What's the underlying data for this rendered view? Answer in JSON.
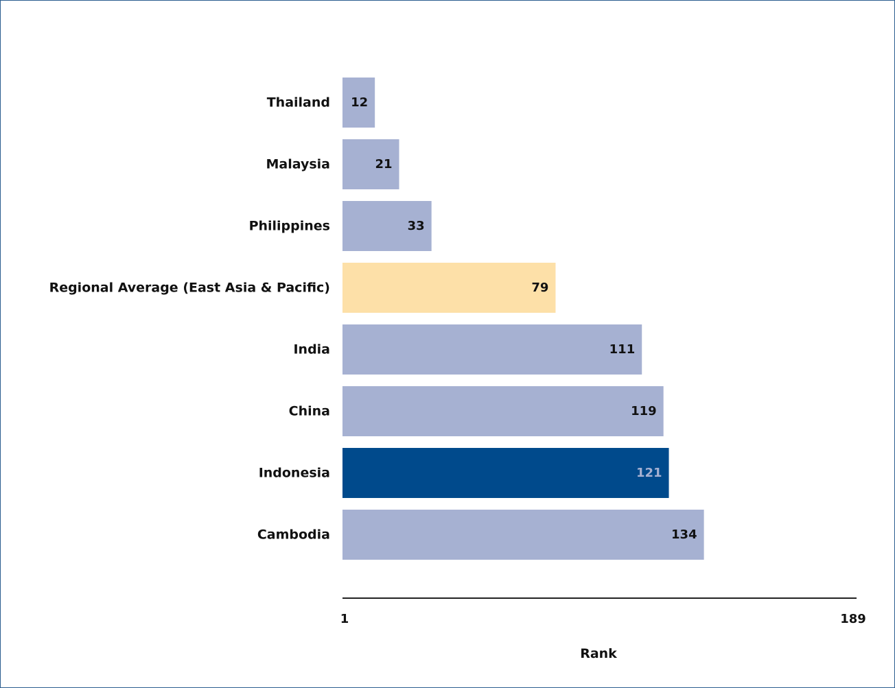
{
  "chart_data": {
    "type": "bar",
    "orientation": "horizontal",
    "categories": [
      "Thailand",
      "Malaysia",
      "Philippines",
      "Regional Average (East Asia & Pacific)",
      "India",
      "China",
      "Indonesia",
      "Cambodia"
    ],
    "values": [
      12,
      21,
      33,
      79,
      111,
      119,
      121,
      134
    ],
    "bar_colors": [
      "#a6b1d2",
      "#a6b1d2",
      "#a6b1d2",
      "#fde0a8",
      "#a6b1d2",
      "#a6b1d2",
      "#004a8c",
      "#a6b1d2"
    ],
    "value_label_colors": [
      "#111111",
      "#111111",
      "#111111",
      "#111111",
      "#111111",
      "#111111",
      "#a6b1d2",
      "#111111"
    ],
    "xlabel": "Rank",
    "xlim": [
      1,
      189
    ],
    "x_tick_labels": [
      "1",
      "189"
    ],
    "grid": false,
    "legend": "none"
  }
}
